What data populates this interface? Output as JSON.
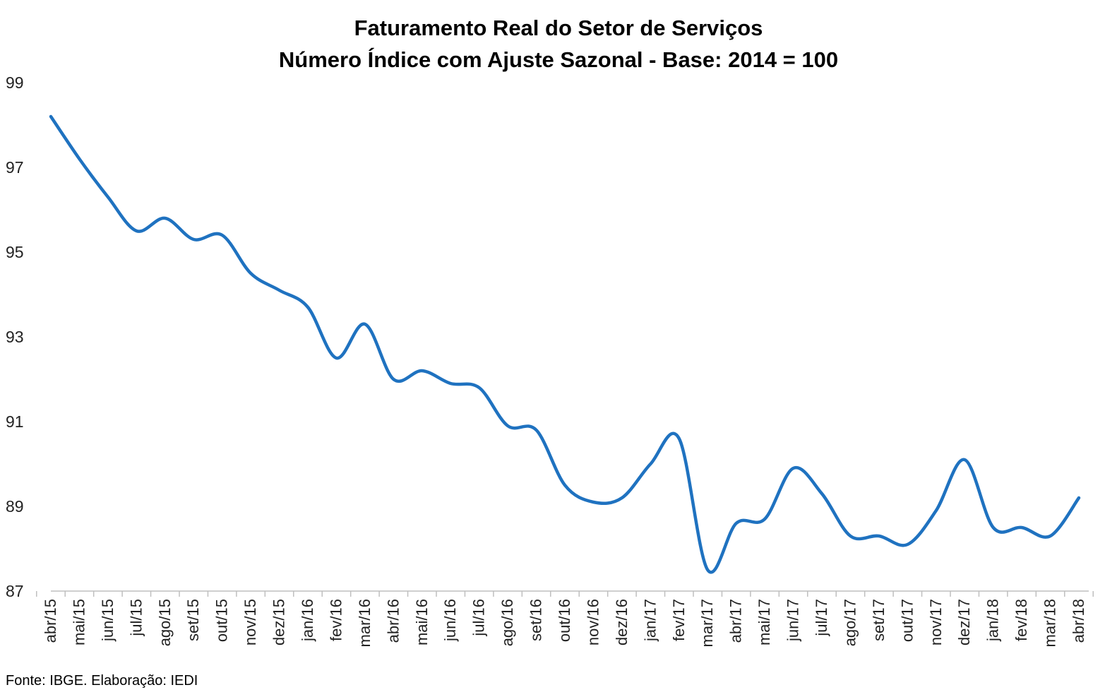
{
  "chart_data": {
    "type": "line",
    "title_lines": [
      "Faturamento Real do Setor de Serviços",
      "Número Índice com Ajuste Sazonal - Base: 2014 = 100"
    ],
    "xlabel": "",
    "ylabel": "",
    "ylim": [
      87,
      99
    ],
    "yticks": [
      99,
      97,
      95,
      93,
      91,
      89,
      87
    ],
    "grid": false,
    "legend": "none",
    "categories": [
      "abr/15",
      "mai/15",
      "jun/15",
      "jul/15",
      "ago/15",
      "set/15",
      "out/15",
      "nov/15",
      "dez/15",
      "jan/16",
      "fev/16",
      "mar/16",
      "abr/16",
      "mai/16",
      "jun/16",
      "jul/16",
      "ago/16",
      "set/16",
      "out/16",
      "nov/16",
      "dez/16",
      "jan/17",
      "fev/17",
      "mar/17",
      "abr/17",
      "mai/17",
      "jun/17",
      "jul/17",
      "ago/17",
      "set/17",
      "out/17",
      "nov/17",
      "dez/17",
      "jan/18",
      "fev/18",
      "mar/18",
      "abr/18"
    ],
    "series": [
      {
        "values": [
          98.2,
          97.2,
          96.3,
          95.5,
          95.8,
          95.3,
          95.4,
          94.5,
          94.1,
          93.7,
          92.5,
          93.3,
          92.0,
          92.2,
          91.9,
          91.8,
          90.9,
          90.8,
          89.5,
          89.1,
          89.2,
          90.0,
          90.6,
          87.5,
          88.6,
          88.7,
          89.9,
          89.3,
          88.3,
          88.3,
          88.1,
          88.9,
          90.1,
          88.5,
          88.5,
          88.3,
          89.2
        ],
        "color": "#1f72c0"
      }
    ]
  },
  "source": "Fonte: IBGE. Elaboração: IEDI"
}
